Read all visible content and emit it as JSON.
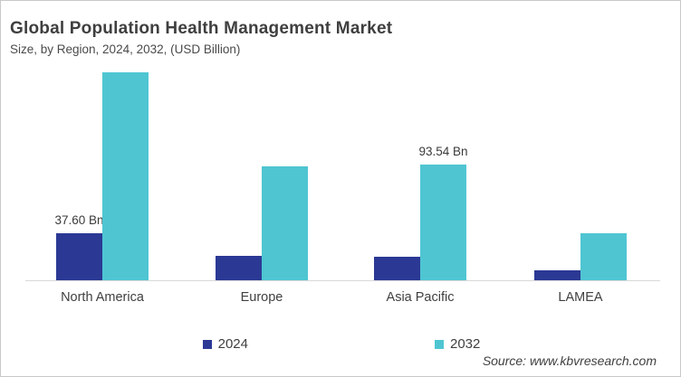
{
  "header": {
    "title": "Global Population Health Management Market",
    "subtitle": "Size, by Region, 2024, 2032, (USD Billion)"
  },
  "source": "Source: www.kbvresearch.com",
  "colors": {
    "series_2024": "#2b3994",
    "series_2032": "#4fc5d2",
    "axis_line": "#d9d9d9",
    "text": "#404040"
  },
  "legend": {
    "items": [
      {
        "label": "2024",
        "color": "#2b3994"
      },
      {
        "label": "2032",
        "color": "#4fc5d2"
      }
    ]
  },
  "chart_data": {
    "type": "bar",
    "title": "Global Population Health Management Market",
    "subtitle": "Size, by Region, 2024, 2032, (USD Billion)",
    "unit": "USD Billion",
    "categories": [
      "North America",
      "Europe",
      "Asia Pacific",
      "LAMEA"
    ],
    "series": [
      {
        "name": "2024",
        "color": "#2b3994",
        "values": [
          37.6,
          19.5,
          19.0,
          8.0
        ]
      },
      {
        "name": "2032",
        "color": "#4fc5d2",
        "values": [
          168.0,
          92.0,
          93.54,
          38.0
        ]
      }
    ],
    "data_labels": [
      {
        "series": "2024",
        "category": "North America",
        "text": "37.60 Bn"
      },
      {
        "series": "2032",
        "category": "Asia Pacific",
        "text": "93.54 Bn"
      }
    ],
    "ylim": [
      0,
      175
    ],
    "grid": false,
    "y_axis_visible": false,
    "legend_position": "bottom"
  }
}
